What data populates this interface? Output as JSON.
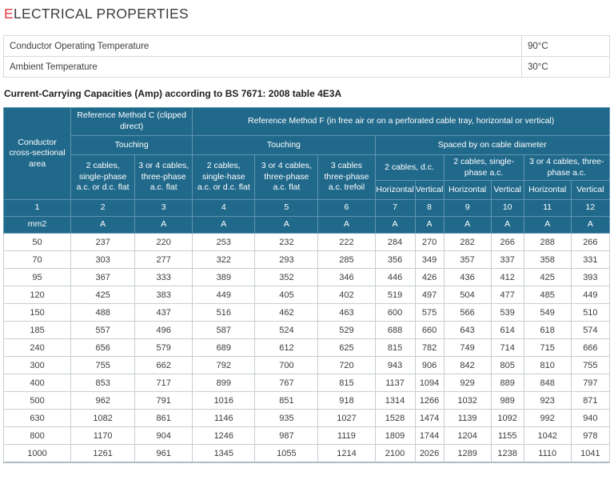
{
  "page": {
    "title_first_letter": "E",
    "title_rest": "LECTRICAL PROPERTIES"
  },
  "colors": {
    "accent_red": "#e93a3e",
    "header_teal": "#21698b"
  },
  "properties_table": {
    "rows": [
      {
        "label": "Conductor Operating Temperature",
        "value": "90°C"
      },
      {
        "label": "Ambient Temperature",
        "value": "30°C"
      }
    ]
  },
  "subtitle": "Current-Carrying Capacities (Amp) according to BS 7671: 2008 table 4E3A",
  "capacity_table": {
    "corner_header": "Conductor cross-sectional area",
    "method_c": {
      "label": "Reference Method C (clipped direct)",
      "touching_label": "Touching",
      "columns": [
        "2 cables, single-phase a.c. or d.c. flat",
        "3 or 4 cables, three-phase a.c. flat"
      ]
    },
    "method_f": {
      "label": "Reference Method F (in free air or on a perforated cable tray, horizontal or vertical)",
      "touching": {
        "label": "Touching",
        "columns": [
          "2 cables, single-hase a.c. or d.c. flat",
          "3 or 4 cables, three-phase a.c. flat",
          "3 cables three-phase a.c. trefoil"
        ]
      },
      "spaced": {
        "label": "Spaced by on cable diameter",
        "groups": [
          {
            "label": "2 cables, d.c."
          },
          {
            "label": "2 cables, single-phase a.c."
          },
          {
            "label": "3 or 4 cables, three-phase a.c."
          }
        ],
        "orientation_labels": [
          "Horizontal",
          "Vertical"
        ]
      }
    },
    "column_numbers": [
      "1",
      "2",
      "3",
      "4",
      "5",
      "6",
      "7",
      "8",
      "9",
      "10",
      "11",
      "12"
    ],
    "units": [
      "mm2",
      "A",
      "A",
      "A",
      "A",
      "A",
      "A",
      "A",
      "A",
      "A",
      "A",
      "A"
    ],
    "rows": [
      {
        "area": "50",
        "values": [
          237,
          220,
          253,
          232,
          222,
          284,
          270,
          282,
          266,
          288,
          266
        ]
      },
      {
        "area": "70",
        "values": [
          303,
          277,
          322,
          293,
          285,
          356,
          349,
          357,
          337,
          358,
          331
        ]
      },
      {
        "area": "95",
        "values": [
          367,
          333,
          389,
          352,
          346,
          446,
          426,
          436,
          412,
          425,
          393
        ]
      },
      {
        "area": "120",
        "values": [
          425,
          383,
          449,
          405,
          402,
          519,
          497,
          504,
          477,
          485,
          449
        ]
      },
      {
        "area": "150",
        "values": [
          488,
          437,
          516,
          462,
          463,
          600,
          575,
          566,
          539,
          549,
          510
        ]
      },
      {
        "area": "185",
        "values": [
          557,
          496,
          587,
          524,
          529,
          688,
          660,
          643,
          614,
          618,
          574
        ]
      },
      {
        "area": "240",
        "values": [
          656,
          579,
          689,
          612,
          625,
          815,
          782,
          749,
          714,
          715,
          666
        ]
      },
      {
        "area": "300",
        "values": [
          755,
          662,
          792,
          700,
          720,
          943,
          906,
          842,
          805,
          810,
          755
        ]
      },
      {
        "area": "400",
        "values": [
          853,
          717,
          899,
          767,
          815,
          1137,
          1094,
          929,
          889,
          848,
          797
        ]
      },
      {
        "area": "500",
        "values": [
          962,
          791,
          1016,
          851,
          918,
          1314,
          1266,
          1032,
          989,
          923,
          871
        ]
      },
      {
        "area": "630",
        "values": [
          1082,
          861,
          1146,
          935,
          1027,
          1528,
          1474,
          1139,
          1092,
          992,
          940
        ]
      },
      {
        "area": "800",
        "values": [
          1170,
          904,
          1246,
          987,
          1119,
          1809,
          1744,
          1204,
          1155,
          1042,
          978
        ]
      },
      {
        "area": "1000",
        "values": [
          1261,
          961,
          1345,
          1055,
          1214,
          2100,
          2026,
          1289,
          1238,
          1110,
          1041
        ]
      }
    ]
  }
}
